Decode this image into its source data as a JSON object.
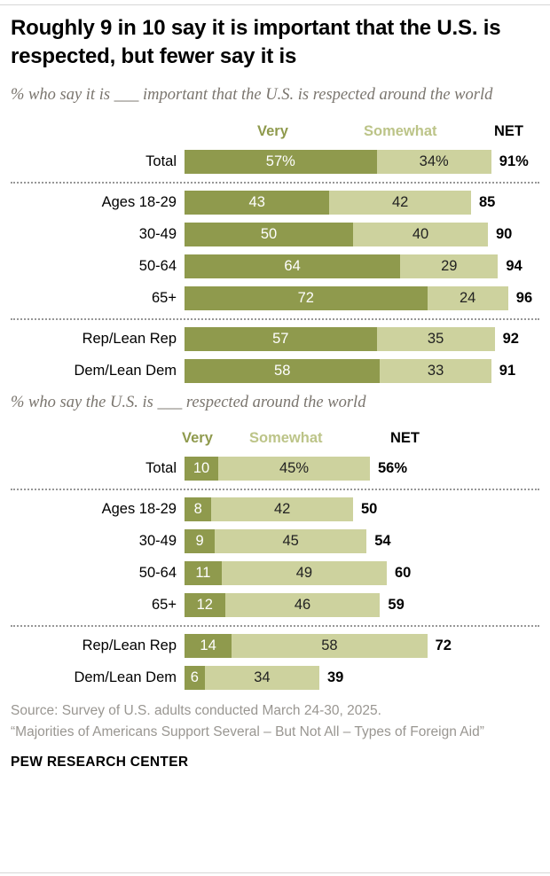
{
  "header": {
    "title": "Roughly 9 in 10 say it is important that the U.S. is respected, but fewer say it is"
  },
  "colors": {
    "very": "#8f9a4d",
    "somewhat": "#cdd29e",
    "somewhat_header": "#bcc488"
  },
  "chart_data": [
    {
      "type": "bar",
      "orientation": "horizontal-stacked",
      "title": "% who say it is ___ important that the U.S. is respected around the world",
      "legend": [
        "Very",
        "Somewhat",
        "NET"
      ],
      "xlim": [
        0,
        100
      ],
      "categories": [
        "Total",
        "Ages 18-29",
        "30-49",
        "50-64",
        "65+",
        "Rep/Lean Rep",
        "Dem/Lean Dem"
      ],
      "series": [
        {
          "name": "Very",
          "values": [
            57,
            43,
            50,
            64,
            72,
            57,
            58
          ],
          "labels": [
            "57%",
            "43",
            "50",
            "64",
            "72",
            "57",
            "58"
          ]
        },
        {
          "name": "Somewhat",
          "values": [
            34,
            42,
            40,
            29,
            24,
            35,
            33
          ],
          "labels": [
            "34%",
            "42",
            "40",
            "29",
            "24",
            "35",
            "33"
          ]
        }
      ],
      "net": {
        "values": [
          91,
          85,
          90,
          94,
          96,
          92,
          91
        ],
        "labels": [
          "91%",
          "85",
          "90",
          "94",
          "96",
          "92",
          "91"
        ]
      },
      "dividers_after": [
        0,
        4
      ]
    },
    {
      "type": "bar",
      "orientation": "horizontal-stacked",
      "title": "% who say the U.S. is ___ respected around the world",
      "legend": [
        "Very",
        "Somewhat",
        "NET"
      ],
      "xlim": [
        0,
        100
      ],
      "categories": [
        "Total",
        "Ages 18-29",
        "30-49",
        "50-64",
        "65+",
        "Rep/Lean Rep",
        "Dem/Lean Dem"
      ],
      "series": [
        {
          "name": "Very",
          "values": [
            10,
            8,
            9,
            11,
            12,
            14,
            6
          ],
          "labels": [
            "10",
            "8",
            "9",
            "11",
            "12",
            "14",
            "6"
          ]
        },
        {
          "name": "Somewhat",
          "values": [
            45,
            42,
            45,
            49,
            46,
            58,
            34
          ],
          "labels": [
            "45%",
            "42",
            "45",
            "49",
            "46",
            "58",
            "34"
          ]
        }
      ],
      "net": {
        "values": [
          56,
          50,
          54,
          60,
          59,
          72,
          39
        ],
        "labels": [
          "56%",
          "50",
          "54",
          "60",
          "59",
          "72",
          "39"
        ]
      },
      "dividers_after": [
        0,
        4
      ]
    }
  ],
  "source": {
    "lines": [
      "Source: Survey of U.S. adults conducted March 24-30, 2025.",
      "“Majorities of Americans Support Several – But Not All – Types of Foreign Aid”"
    ]
  },
  "footer": {
    "label": "PEW RESEARCH CENTER"
  }
}
